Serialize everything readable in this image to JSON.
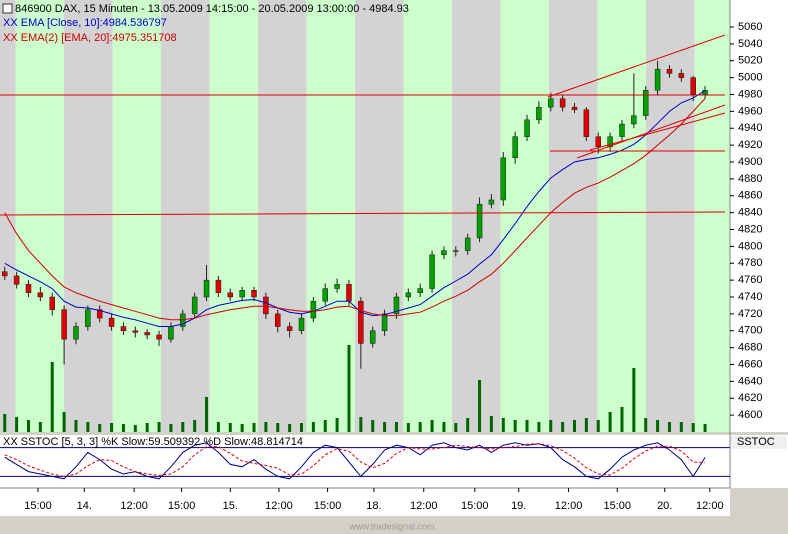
{
  "chart_data": [
    {
      "type": "candlestick",
      "title": "846900  DAX, 15 Minuten - 13.05.2009 14:15:00 - 20.05.2009 13:00:00 - 4984.93",
      "open": [
        4770,
        4765,
        4755,
        4745,
        4740,
        4725,
        4690,
        4705,
        4725,
        4715,
        4705,
        4700,
        4698,
        4695,
        4690,
        4705,
        4720,
        4740,
        4760,
        4745,
        4740,
        4748,
        4740,
        4720,
        4705,
        4700,
        4715,
        4735,
        4750,
        4755,
        4735,
        4685,
        4700,
        4720,
        4740,
        4745,
        4750,
        4790,
        4795,
        4795,
        4810,
        4850,
        4855,
        4905,
        4930,
        4950,
        4965,
        4975,
        4965,
        4962,
        4930,
        4918,
        4930,
        4945,
        4955,
        4985,
        5010,
        5005,
        5000,
        4980
      ],
      "high": [
        4776,
        4770,
        4760,
        4752,
        4745,
        4730,
        4710,
        4730,
        4730,
        4720,
        4710,
        4705,
        4702,
        4700,
        4710,
        4725,
        4745,
        4778,
        4765,
        4750,
        4752,
        4752,
        4745,
        4725,
        4710,
        4720,
        4740,
        4756,
        4762,
        4760,
        4740,
        4705,
        4725,
        4745,
        4750,
        4756,
        4795,
        4800,
        4800,
        4815,
        4858,
        4862,
        4912,
        4936,
        4956,
        4972,
        4982,
        4980,
        4970,
        4965,
        4935,
        4935,
        4950,
        5005,
        4990,
        5020,
        5015,
        5010,
        5002,
        4990
      ],
      "low": [
        4760,
        4750,
        4740,
        4735,
        4718,
        4660,
        4684,
        4700,
        4710,
        4700,
        4695,
        4692,
        4690,
        4682,
        4686,
        4700,
        4715,
        4735,
        4740,
        4735,
        4735,
        4735,
        4714,
        4698,
        4692,
        4696,
        4710,
        4730,
        4745,
        4730,
        4655,
        4680,
        4694,
        4714,
        4735,
        4740,
        4745,
        4785,
        4788,
        4790,
        4805,
        4845,
        4848,
        4898,
        4925,
        4945,
        4960,
        4960,
        4958,
        4925,
        4910,
        4912,
        4925,
        4940,
        4950,
        4980,
        5000,
        4995,
        4972,
        4975
      ],
      "close": [
        4765,
        4755,
        4745,
        4740,
        4725,
        4690,
        4705,
        4725,
        4715,
        4705,
        4700,
        4698,
        4695,
        4690,
        4705,
        4720,
        4740,
        4760,
        4745,
        4740,
        4748,
        4740,
        4720,
        4705,
        4700,
        4715,
        4735,
        4750,
        4755,
        4735,
        4685,
        4700,
        4720,
        4740,
        4745,
        4750,
        4790,
        4795,
        4795,
        4810,
        4850,
        4855,
        4905,
        4930,
        4950,
        4965,
        4975,
        4965,
        4962,
        4930,
        4918,
        4930,
        4945,
        4955,
        4985,
        5010,
        5005,
        5000,
        4980,
        4984.93
      ],
      "up_color": "#00a000",
      "down_color": "#e00000",
      "series": [
        {
          "name": "XX EMA [Close, 10]:4984.536797",
          "color": "#0000cc",
          "values": [
            4780,
            4772,
            4765,
            4758,
            4750,
            4735,
            4728,
            4727,
            4724,
            4720,
            4716,
            4713,
            4709,
            4705,
            4705,
            4708,
            4715,
            4725,
            4730,
            4733,
            4736,
            4737,
            4733,
            4727,
            4722,
            4720,
            4723,
            4729,
            4735,
            4735,
            4722,
            4718,
            4719,
            4723,
            4727,
            4731,
            4741,
            4751,
            4759,
            4767,
            4779,
            4790,
            4808,
            4827,
            4847,
            4865,
            4881,
            4891,
            4900,
            4903,
            4905,
            4909,
            4914,
            4921,
            4932,
            4946,
            4960,
            4970,
            4976,
            4984.536797
          ]
        },
        {
          "name": "XX EMA(2) [EMA, 20]:4975.351708",
          "color": "#cc0000",
          "values": [
            4840,
            4815,
            4795,
            4780,
            4765,
            4752,
            4745,
            4740,
            4735,
            4731,
            4727,
            4723,
            4719,
            4715,
            4713,
            4713,
            4715,
            4719,
            4722,
            4725,
            4727,
            4729,
            4729,
            4727,
            4725,
            4723,
            4723,
            4725,
            4728,
            4729,
            4724,
            4720,
            4718,
            4718,
            4720,
            4722,
            4728,
            4735,
            4741,
            4748,
            4758,
            4767,
            4780,
            4795,
            4810,
            4825,
            4840,
            4852,
            4863,
            4870,
            4875,
            4882,
            4890,
            4898,
            4908,
            4920,
            4932,
            4945,
            4960,
            4975.351708
          ]
        }
      ],
      "volume": {
        "color": "#006400",
        "vlim": [
          0,
          100
        ],
        "values": [
          18,
          15,
          12,
          10,
          70,
          20,
          12,
          10,
          8,
          9,
          8,
          7,
          9,
          10,
          8,
          10,
          12,
          35,
          10,
          9,
          8,
          9,
          10,
          9,
          8,
          9,
          10,
          12,
          14,
          87,
          15,
          12,
          10,
          10,
          9,
          10,
          12,
          10,
          9,
          14,
          52,
          16,
          14,
          12,
          12,
          10,
          12,
          10,
          12,
          14,
          12,
          20,
          25,
          64,
          14,
          12,
          10,
          10,
          9,
          8
        ]
      },
      "ylim": [
        4580,
        5092
      ],
      "yticks": [
        4600,
        4620,
        4640,
        4660,
        4680,
        4700,
        4720,
        4740,
        4760,
        4780,
        4800,
        4820,
        4840,
        4860,
        4880,
        4900,
        4920,
        4940,
        4960,
        4980,
        5000,
        5020,
        5040,
        5060
      ],
      "xlim": [
        -0.4,
        61.1
      ],
      "xticks": [
        {
          "value": 2.8,
          "label": "15:00"
        },
        {
          "value": 6.7,
          "label": "14."
        },
        {
          "value": 10.9,
          "label": "12:00"
        },
        {
          "value": 14.9,
          "label": "15:00"
        },
        {
          "value": 19.0,
          "label": "15."
        },
        {
          "value": 23.1,
          "label": "12:00"
        },
        {
          "value": 27.2,
          "label": "15:00"
        },
        {
          "value": 31.1,
          "label": "18."
        },
        {
          "value": 35.3,
          "label": "12:00"
        },
        {
          "value": 39.6,
          "label": "15:00"
        },
        {
          "value": 43.3,
          "label": "19."
        },
        {
          "value": 47.5,
          "label": "12:00"
        },
        {
          "value": 51.6,
          "label": "15:00"
        },
        {
          "value": 55.6,
          "label": "20."
        },
        {
          "value": 59.4,
          "label": "12:00"
        }
      ],
      "footer": "www.tradesignal.com"
    },
    {
      "type": "line",
      "title": "XX SSTOC [5, 3, 3] %K Slow:59.509392 %D Slow:48.814714",
      "label": "SSTOC",
      "series": [
        {
          "name": "%K Slow",
          "color": "#000080",
          "values": [
            60,
            45,
            30,
            25,
            20,
            15,
            40,
            70,
            55,
            35,
            25,
            30,
            20,
            15,
            40,
            70,
            85,
            90,
            70,
            45,
            40,
            55,
            35,
            20,
            15,
            40,
            70,
            85,
            80,
            50,
            20,
            45,
            75,
            85,
            80,
            65,
            85,
            90,
            80,
            75,
            85,
            70,
            85,
            90,
            85,
            88,
            80,
            55,
            40,
            20,
            15,
            35,
            60,
            75,
            85,
            90,
            75,
            55,
            20,
            59.509392
          ]
        },
        {
          "name": "%D Slow",
          "color": "#e00000",
          "values": [
            65,
            55,
            42,
            33,
            25,
            20,
            25,
            42,
            55,
            53,
            40,
            30,
            25,
            22,
            25,
            40,
            65,
            82,
            82,
            68,
            52,
            47,
            43,
            37,
            23,
            25,
            42,
            65,
            78,
            72,
            50,
            38,
            47,
            68,
            80,
            77,
            77,
            80,
            85,
            82,
            80,
            77,
            80,
            82,
            87,
            88,
            84,
            74,
            58,
            38,
            25,
            23,
            37,
            57,
            73,
            83,
            83,
            73,
            50,
            48.814714
          ]
        }
      ],
      "ylim": [
        0,
        100
      ],
      "levels": [
        20,
        80
      ]
    }
  ]
}
